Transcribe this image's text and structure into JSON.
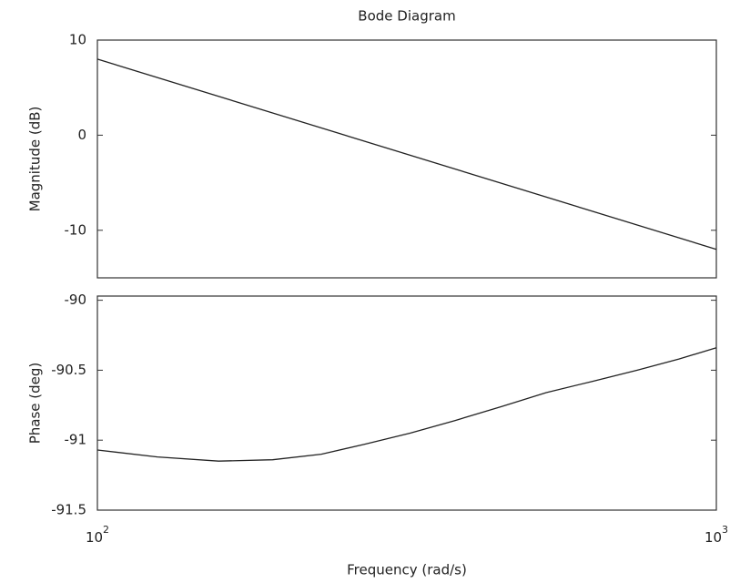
{
  "chart_data": [
    {
      "type": "line",
      "title": "Bode Diagram",
      "y_label": "Magnitude (dB)",
      "log_x": true,
      "x": [
        100,
        1000
      ],
      "series": [
        {
          "color": "#222222",
          "values": [
            8,
            -12
          ]
        }
      ],
      "xlim": [
        100,
        1000
      ],
      "ylim": [
        -15,
        10
      ],
      "yticks": [
        -10,
        0,
        10
      ]
    },
    {
      "type": "line",
      "x_label": "Frequency  (rad/s)",
      "y_label": "Phase (deg)",
      "log_x": true,
      "x": [
        100,
        125,
        157,
        192,
        230,
        270,
        320,
        378,
        450,
        531,
        630,
        745,
        870,
        1000
      ],
      "series": [
        {
          "color": "#222222",
          "values": [
            -91.07,
            -91.12,
            -91.15,
            -91.14,
            -91.1,
            -91.03,
            -90.95,
            -90.86,
            -90.76,
            -90.66,
            -90.58,
            -90.5,
            -90.42,
            -90.34
          ]
        }
      ],
      "xlim": [
        100,
        1000
      ],
      "ylim": [
        -91.5,
        -89.97
      ],
      "xticks": [
        {
          "value": 100,
          "label": "10",
          "exponent": "2"
        },
        {
          "value": 1000,
          "label": "10",
          "exponent": "3"
        }
      ],
      "yticks": [
        -91.5,
        -91,
        -90.5,
        -90
      ]
    }
  ]
}
